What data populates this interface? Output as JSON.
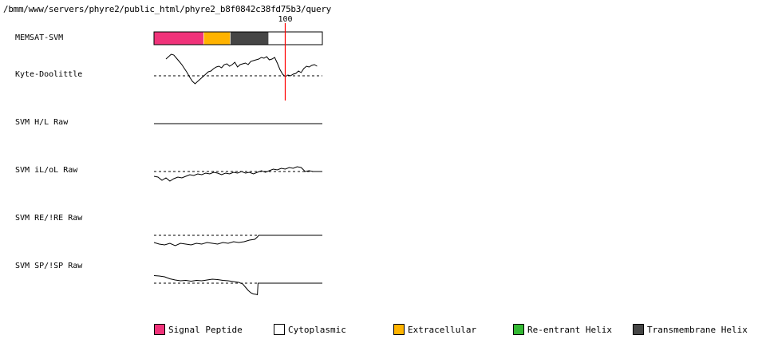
{
  "header": {
    "path": "/bmm/www/servers/phyre2/public_html/phyre2_b8f0842c38fd75b3/query"
  },
  "chart_data": {
    "type": "line",
    "sequence_length": 128,
    "marker": {
      "position": 100,
      "label": "100",
      "color": "#ff0000"
    },
    "memsat_track": {
      "label": "MEMSAT-SVM",
      "segments": [
        {
          "type": "Signal Peptide",
          "start": 1,
          "end": 38
        },
        {
          "type": "Extracellular",
          "start": 39,
          "end": 58
        },
        {
          "type": "Transmembrane Helix",
          "start": 59,
          "end": 87
        },
        {
          "type": "Cytoplasmic",
          "start": 88,
          "end": 128
        }
      ]
    },
    "tracks": [
      {
        "label": "Kyte-Doolittle",
        "baseline": 0,
        "range": [
          -1.2,
          1.2
        ],
        "points": [
          [
            10,
            1.05
          ],
          [
            12,
            1.2
          ],
          [
            14,
            1.35
          ],
          [
            16,
            1.3
          ],
          [
            18,
            1.1
          ],
          [
            20,
            0.9
          ],
          [
            22,
            0.7
          ],
          [
            24,
            0.45
          ],
          [
            26,
            0.2
          ],
          [
            28,
            -0.1
          ],
          [
            30,
            -0.35
          ],
          [
            32,
            -0.5
          ],
          [
            34,
            -0.35
          ],
          [
            36,
            -0.2
          ],
          [
            38,
            -0.05
          ],
          [
            40,
            0.1
          ],
          [
            42,
            0.25
          ],
          [
            44,
            0.3
          ],
          [
            46,
            0.45
          ],
          [
            48,
            0.55
          ],
          [
            50,
            0.6
          ],
          [
            52,
            0.5
          ],
          [
            54,
            0.7
          ],
          [
            56,
            0.75
          ],
          [
            58,
            0.6
          ],
          [
            60,
            0.7
          ],
          [
            62,
            0.85
          ],
          [
            64,
            0.55
          ],
          [
            66,
            0.7
          ],
          [
            68,
            0.75
          ],
          [
            70,
            0.8
          ],
          [
            72,
            0.7
          ],
          [
            74,
            0.9
          ],
          [
            76,
            0.95
          ],
          [
            78,
            1.0
          ],
          [
            80,
            1.05
          ],
          [
            82,
            1.15
          ],
          [
            84,
            1.1
          ],
          [
            86,
            1.2
          ],
          [
            88,
            1.0
          ],
          [
            90,
            1.05
          ],
          [
            92,
            1.15
          ],
          [
            94,
            0.8
          ],
          [
            96,
            0.4
          ],
          [
            98,
            0.1
          ],
          [
            100,
            -0.05
          ],
          [
            102,
            0.05
          ],
          [
            104,
            0.0
          ],
          [
            106,
            0.1
          ],
          [
            108,
            0.15
          ],
          [
            110,
            0.3
          ],
          [
            112,
            0.2
          ],
          [
            114,
            0.45
          ],
          [
            116,
            0.6
          ],
          [
            118,
            0.55
          ],
          [
            120,
            0.65
          ],
          [
            122,
            0.7
          ],
          [
            124,
            0.6
          ]
        ]
      },
      {
        "label": "SVM H/L Raw",
        "baseline": 0,
        "range": [
          -1,
          1
        ],
        "show_baseline": false,
        "points": [
          [
            1,
            0
          ],
          [
            128,
            0
          ]
        ]
      },
      {
        "label": "SVM iL/oL Raw",
        "baseline": 0,
        "range": [
          -1,
          1
        ],
        "points": [
          [
            1,
            -0.3
          ],
          [
            4,
            -0.35
          ],
          [
            7,
            -0.55
          ],
          [
            10,
            -0.4
          ],
          [
            13,
            -0.6
          ],
          [
            16,
            -0.45
          ],
          [
            19,
            -0.35
          ],
          [
            22,
            -0.4
          ],
          [
            25,
            -0.3
          ],
          [
            28,
            -0.2
          ],
          [
            31,
            -0.25
          ],
          [
            34,
            -0.15
          ],
          [
            37,
            -0.2
          ],
          [
            40,
            -0.1
          ],
          [
            43,
            -0.15
          ],
          [
            46,
            -0.05
          ],
          [
            49,
            -0.1
          ],
          [
            52,
            -0.2
          ],
          [
            55,
            -0.1
          ],
          [
            58,
            -0.15
          ],
          [
            61,
            -0.05
          ],
          [
            64,
            -0.1
          ],
          [
            67,
            0.0
          ],
          [
            70,
            -0.1
          ],
          [
            73,
            -0.05
          ],
          [
            76,
            -0.15
          ],
          [
            79,
            -0.05
          ],
          [
            82,
            0.05
          ],
          [
            85,
            -0.05
          ],
          [
            88,
            0.05
          ],
          [
            91,
            0.15
          ],
          [
            94,
            0.1
          ],
          [
            97,
            0.2
          ],
          [
            100,
            0.15
          ],
          [
            103,
            0.25
          ],
          [
            106,
            0.2
          ],
          [
            109,
            0.3
          ],
          [
            112,
            0.25
          ],
          [
            115,
            0.0
          ],
          [
            118,
            0.05
          ],
          [
            121,
            0.0
          ],
          [
            124,
            0.0
          ],
          [
            128,
            0.0
          ]
        ]
      },
      {
        "label": "SVM RE/!RE Raw",
        "baseline": 0,
        "range": [
          -1,
          1
        ],
        "points": [
          [
            1,
            -0.45
          ],
          [
            5,
            -0.55
          ],
          [
            9,
            -0.6
          ],
          [
            13,
            -0.5
          ],
          [
            17,
            -0.65
          ],
          [
            21,
            -0.5
          ],
          [
            25,
            -0.55
          ],
          [
            29,
            -0.6
          ],
          [
            33,
            -0.5
          ],
          [
            37,
            -0.55
          ],
          [
            41,
            -0.45
          ],
          [
            45,
            -0.5
          ],
          [
            49,
            -0.55
          ],
          [
            53,
            -0.45
          ],
          [
            57,
            -0.5
          ],
          [
            61,
            -0.4
          ],
          [
            65,
            -0.45
          ],
          [
            69,
            -0.4
          ],
          [
            73,
            -0.3
          ],
          [
            77,
            -0.25
          ],
          [
            79,
            -0.1
          ],
          [
            80,
            0.0
          ],
          [
            128,
            0.0
          ]
        ]
      },
      {
        "label": "SVM SP/!SP Raw",
        "baseline": 0,
        "range": [
          -1,
          1
        ],
        "points": [
          [
            1,
            0.95
          ],
          [
            5,
            0.9
          ],
          [
            9,
            0.8
          ],
          [
            13,
            0.55
          ],
          [
            17,
            0.4
          ],
          [
            21,
            0.3
          ],
          [
            25,
            0.35
          ],
          [
            29,
            0.25
          ],
          [
            33,
            0.35
          ],
          [
            37,
            0.3
          ],
          [
            41,
            0.4
          ],
          [
            45,
            0.5
          ],
          [
            49,
            0.45
          ],
          [
            53,
            0.35
          ],
          [
            57,
            0.3
          ],
          [
            61,
            0.2
          ],
          [
            65,
            0.1
          ],
          [
            68,
            -0.1
          ],
          [
            70,
            -0.5
          ],
          [
            72,
            -0.9
          ],
          [
            74,
            -1.2
          ],
          [
            76,
            -1.35
          ],
          [
            78,
            -1.4
          ],
          [
            79,
            -1.45
          ],
          [
            79.5,
            0.0
          ],
          [
            128,
            0.0
          ]
        ]
      }
    ],
    "legend": [
      {
        "label": "Signal Peptide",
        "color": "#f0337a"
      },
      {
        "label": "Cytoplasmic",
        "color": "#ffffff"
      },
      {
        "label": "Extracellular",
        "color": "#ffb300"
      },
      {
        "label": "Re-entrant Helix",
        "color": "#33b833"
      },
      {
        "label": "Transmembrane Helix",
        "color": "#454545"
      }
    ]
  }
}
